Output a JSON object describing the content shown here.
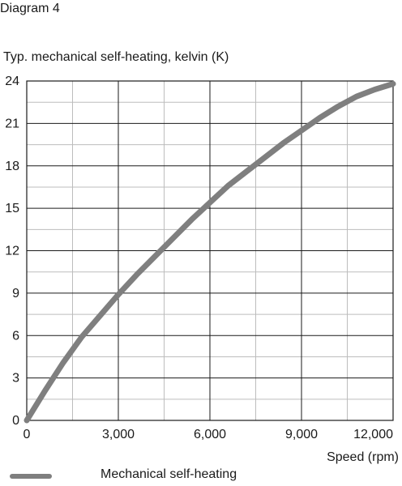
{
  "header": {
    "diagram_label": "Diagram 4"
  },
  "chart_data": {
    "type": "line",
    "title": "",
    "ylabel": "Typ. mechanical self-heating, kelvin (K)",
    "xlabel": "Speed (rpm)",
    "xlim": [
      0,
      12000
    ],
    "ylim": [
      0,
      24
    ],
    "x_ticks": [
      0,
      3000,
      6000,
      9000,
      12000
    ],
    "x_tick_labels": [
      "0",
      "3,000",
      "6,000",
      "9,000",
      "12,000"
    ],
    "y_ticks": [
      0,
      3,
      6,
      9,
      12,
      15,
      18,
      21,
      24
    ],
    "y_tick_labels": [
      "0",
      "3",
      "6",
      "9",
      "12",
      "15",
      "18",
      "21",
      "24"
    ],
    "grid": true,
    "legend_position": "bottom",
    "series": [
      {
        "name": "Mechanical self-heating",
        "color": "#7f7f7f",
        "x": [
          0,
          600,
          1200,
          1800,
          2400,
          3000,
          3600,
          4200,
          4800,
          5400,
          6000,
          6600,
          7200,
          7800,
          8400,
          9000,
          9600,
          10200,
          10800,
          11400,
          12000
        ],
        "y": [
          0,
          2.1,
          4.1,
          5.9,
          7.4,
          8.9,
          10.3,
          11.6,
          12.9,
          14.2,
          15.4,
          16.6,
          17.6,
          18.6,
          19.6,
          20.5,
          21.4,
          22.2,
          22.9,
          23.4,
          23.8
        ]
      }
    ]
  }
}
